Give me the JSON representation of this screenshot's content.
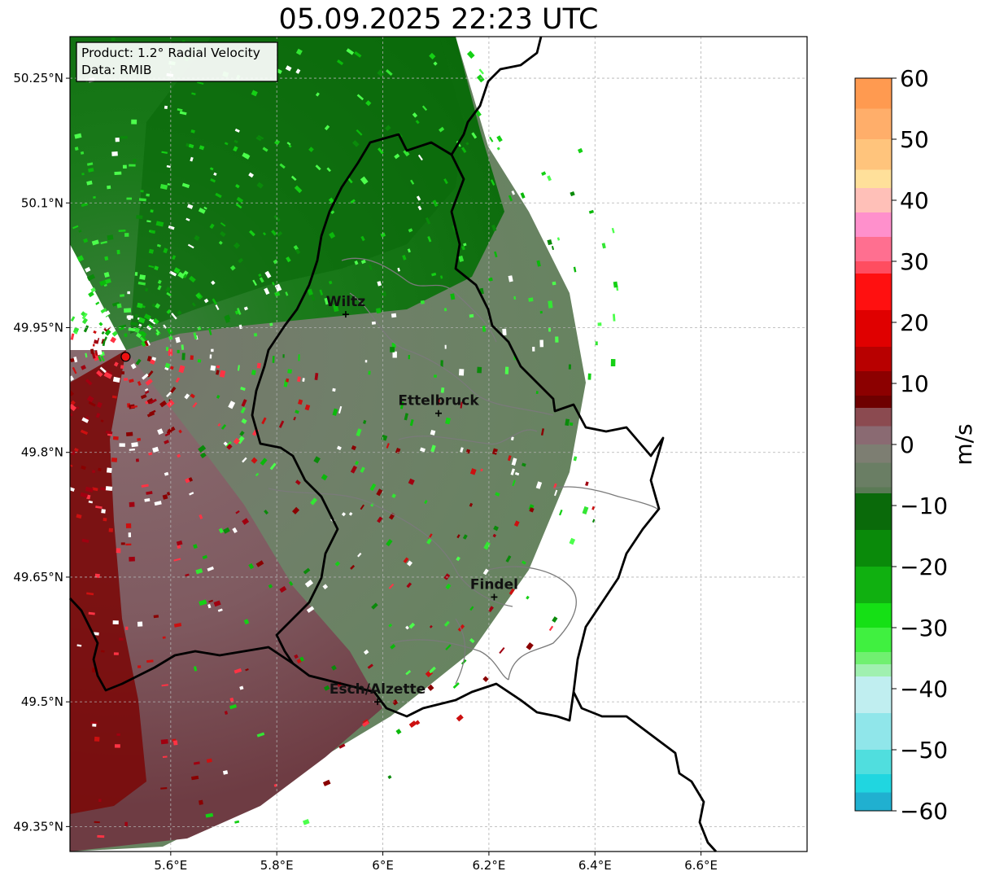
{
  "title": "05.09.2025 22:23 UTC",
  "info_box": {
    "product": "Product: 1.2° Radial Velocity",
    "data": "Data: RMIB"
  },
  "map": {
    "lon_range": [
      5.41,
      6.8
    ],
    "lat_range": [
      49.32,
      50.3
    ],
    "lon_ticks": [
      {
        "value": 5.6,
        "label": "5.6°E"
      },
      {
        "value": 5.8,
        "label": "5.8°E"
      },
      {
        "value": 6.0,
        "label": "6°E"
      },
      {
        "value": 6.2,
        "label": "6.2°E"
      },
      {
        "value": 6.4,
        "label": "6.4°E"
      },
      {
        "value": 6.6,
        "label": "6.6°E"
      }
    ],
    "lat_ticks": [
      {
        "value": 50.25,
        "label": "50.25°N"
      },
      {
        "value": 50.1,
        "label": "50.1°N"
      },
      {
        "value": 49.95,
        "label": "49.95°N"
      },
      {
        "value": 49.8,
        "label": "49.8°N"
      },
      {
        "value": 49.65,
        "label": "49.65°N"
      },
      {
        "value": 49.5,
        "label": "49.5°N"
      },
      {
        "value": 49.35,
        "label": "49.35°N"
      }
    ],
    "radar_site": {
      "lon": 5.515,
      "lat": 49.915,
      "color": "#ee1111"
    },
    "cities": [
      {
        "name": "Wiltz",
        "lon": 5.93,
        "lat": 49.966
      },
      {
        "name": "Ettelbruck",
        "lon": 6.105,
        "lat": 49.847
      },
      {
        "name": "Findel",
        "lon": 6.21,
        "lat": 49.626
      },
      {
        "name": "Esch/Alzette",
        "lon": 5.99,
        "lat": 49.5
      }
    ]
  },
  "colorbar": {
    "label": "m/s",
    "min": -60,
    "max": 60,
    "ticks": [
      {
        "value": 60,
        "label": "60"
      },
      {
        "value": 50,
        "label": "50"
      },
      {
        "value": 40,
        "label": "40"
      },
      {
        "value": 30,
        "label": "30"
      },
      {
        "value": 20,
        "label": "20"
      },
      {
        "value": 10,
        "label": "10"
      },
      {
        "value": 0,
        "label": "0"
      },
      {
        "value": -10,
        "label": "−10"
      },
      {
        "value": -20,
        "label": "−20"
      },
      {
        "value": -30,
        "label": "−30"
      },
      {
        "value": -40,
        "label": "−40"
      },
      {
        "value": -50,
        "label": "−50"
      },
      {
        "value": -60,
        "label": "−60"
      }
    ]
  },
  "colors": {
    "border": "#000000",
    "cantons": "#7a7a7a",
    "grid": "#b0b0b0"
  }
}
